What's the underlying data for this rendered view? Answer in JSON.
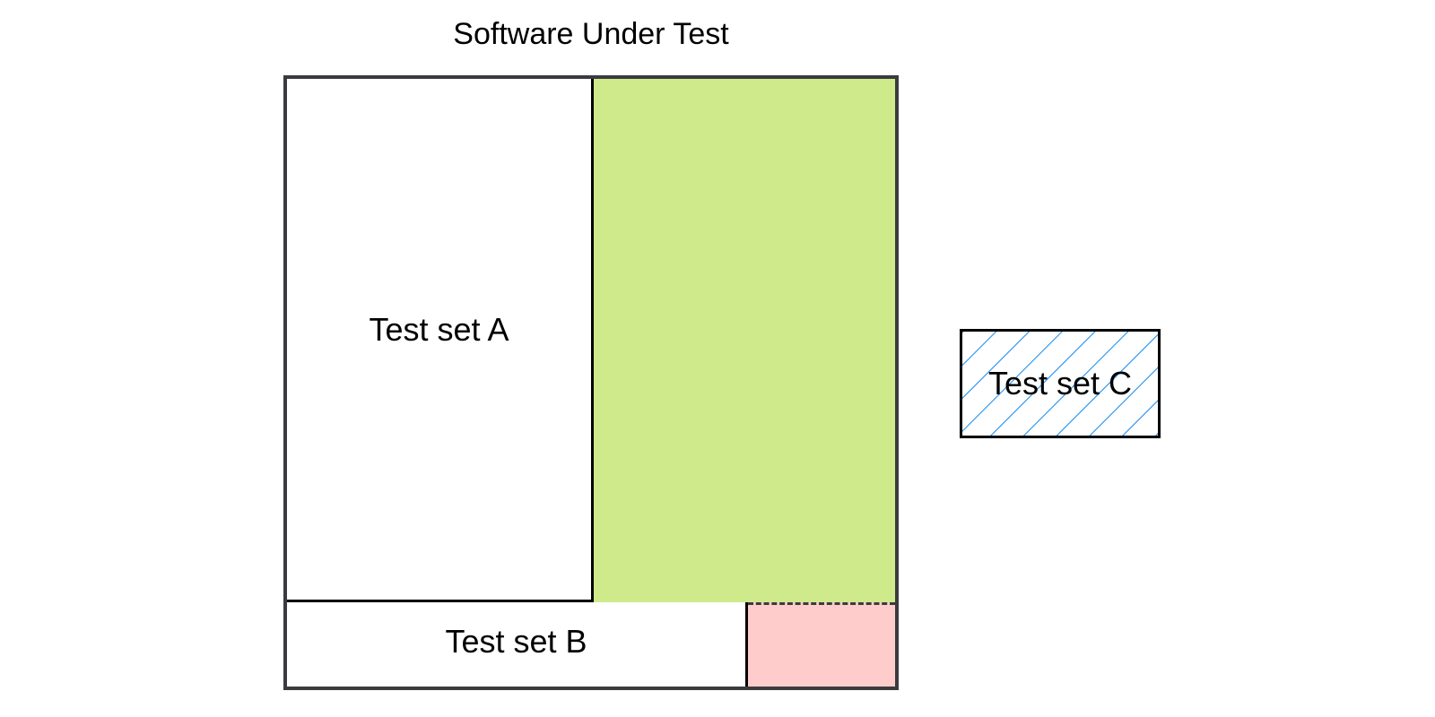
{
  "diagram": {
    "title": "Software Under Test",
    "regions": {
      "test_set_a": {
        "label": "Test set A"
      },
      "uncovered": {
        "fill": "#cfea8b"
      },
      "test_set_b": {
        "label": "Test set B"
      },
      "overlap": {
        "fill": "#ffcccc"
      },
      "test_set_c": {
        "label": "Test set C",
        "hatch_color": "#1f8ef1"
      }
    },
    "colors": {
      "outline": "#3a3b3f",
      "divider": "#000000"
    }
  }
}
